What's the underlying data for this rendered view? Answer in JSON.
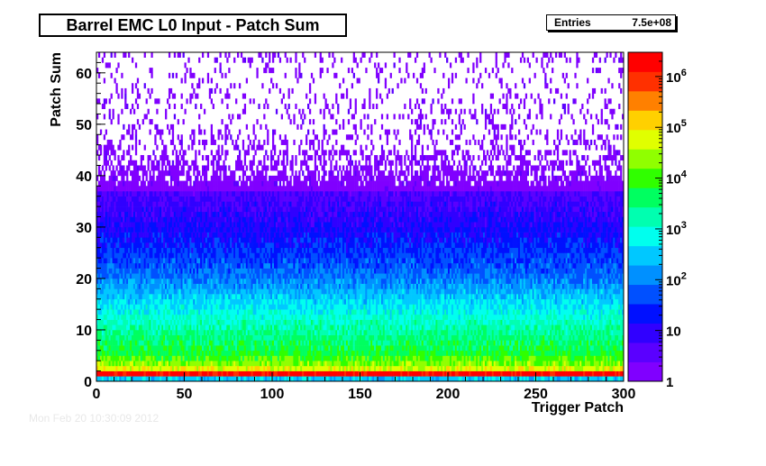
{
  "chart_data": {
    "type": "heatmap",
    "title": "Barrel EMC L0 Input - Patch Sum",
    "xlabel": "Trigger Patch",
    "ylabel": "Patch Sum",
    "xlim": [
      0,
      300
    ],
    "ylim": [
      0,
      64
    ],
    "x_ticks": [
      "0",
      "50",
      "100",
      "150",
      "200",
      "250",
      "300"
    ],
    "y_ticks": [
      "0",
      "10",
      "20",
      "30",
      "40",
      "50",
      "60"
    ],
    "z_scale": "log",
    "zlim": [
      1,
      3000000
    ],
    "z_ticks": [
      {
        "value": 1,
        "base": "1",
        "exp": ""
      },
      {
        "value": 10,
        "base": "10",
        "exp": ""
      },
      {
        "value": 100,
        "base": "10",
        "exp": "2"
      },
      {
        "value": 1000,
        "base": "10",
        "exp": "3"
      },
      {
        "value": 10000,
        "base": "10",
        "exp": "4"
      },
      {
        "value": 100000,
        "base": "10",
        "exp": "5"
      },
      {
        "value": 1000000,
        "base": "10",
        "exp": "6"
      }
    ],
    "stats": {
      "label": "Entries",
      "value": "7.5e+08"
    },
    "density_profile": {
      "patch_sum": [
        0,
        1,
        2,
        3,
        5,
        8,
        12,
        16,
        20,
        25,
        30,
        35,
        40,
        45,
        50,
        55,
        60,
        63
      ],
      "counts": [
        300,
        2000000,
        60000,
        20000,
        6000,
        3000,
        1000,
        300,
        80,
        30,
        12,
        6,
        2.5,
        1.2,
        0.7,
        0.6,
        0.5,
        0.9
      ]
    },
    "palette": [
      "#8000ff",
      "#5a00ff",
      "#3000ff",
      "#0010ff",
      "#0050ff",
      "#0090ff",
      "#00c8ff",
      "#00ffee",
      "#00ffb0",
      "#00ff60",
      "#30ff00",
      "#90ff00",
      "#e0ff00",
      "#ffd000",
      "#ff8000",
      "#ff3000",
      "#ff0000"
    ]
  },
  "footer": "Mon Feb 20 10:30:09 2012"
}
